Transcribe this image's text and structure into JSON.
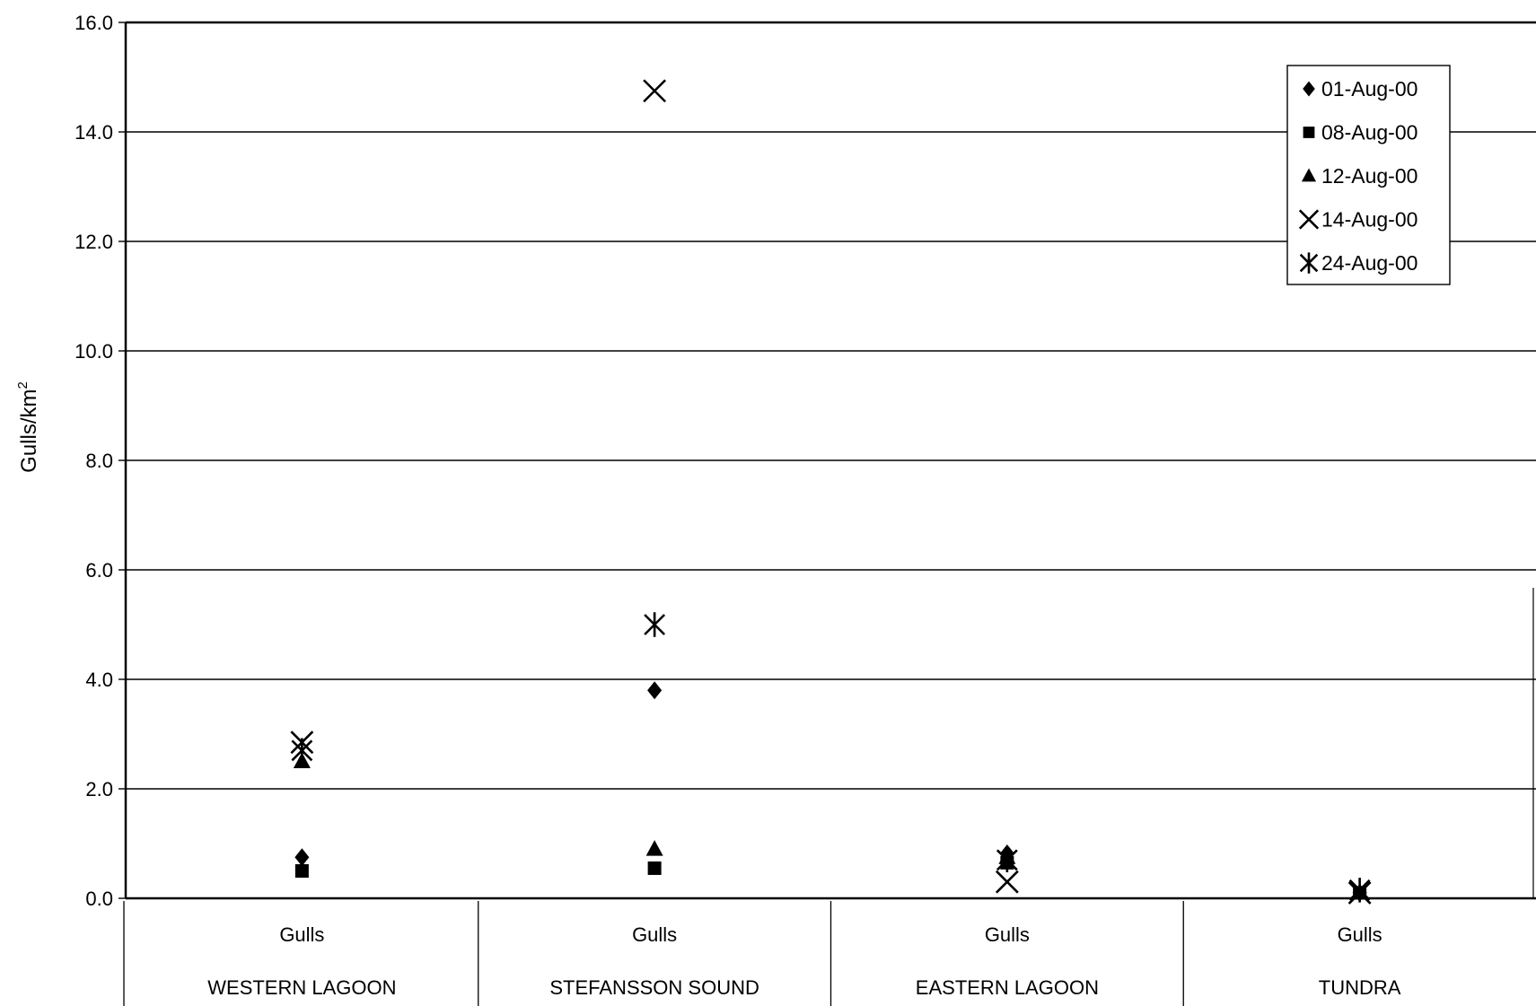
{
  "chart_data": {
    "type": "scatter",
    "title": "",
    "ylabel": "Gulls/km",
    "ylabel_superscript": "2",
    "ylim": [
      0,
      16
    ],
    "yticks": [
      "0.0",
      "2.0",
      "4.0",
      "6.0",
      "8.0",
      "10.0",
      "12.0",
      "14.0",
      "16.0"
    ],
    "grid": true,
    "legend_position": "top-right",
    "categories": [
      {
        "species": "Gulls",
        "region": "WESTERN LAGOON"
      },
      {
        "species": "Gulls",
        "region": "STEFANSSON SOUND"
      },
      {
        "species": "Gulls",
        "region": "EASTERN LAGOON"
      },
      {
        "species": "Gulls",
        "region": "TUNDRA"
      }
    ],
    "series": [
      {
        "name": "01-Aug-00",
        "marker": "diamond",
        "values": [
          0.75,
          3.8,
          0.82,
          0.1
        ]
      },
      {
        "name": "08-Aug-00",
        "marker": "square",
        "values": [
          0.5,
          0.55,
          0.65,
          0.1
        ]
      },
      {
        "name": "12-Aug-00",
        "marker": "triangle",
        "values": [
          2.5,
          0.9,
          0.75,
          0.1
        ]
      },
      {
        "name": "14-Aug-00",
        "marker": "x",
        "values": [
          2.85,
          14.75,
          0.3,
          0.1
        ]
      },
      {
        "name": "24-Aug-00",
        "marker": "asterisk",
        "values": [
          2.7,
          5.0,
          0.7,
          0.15
        ]
      }
    ]
  }
}
